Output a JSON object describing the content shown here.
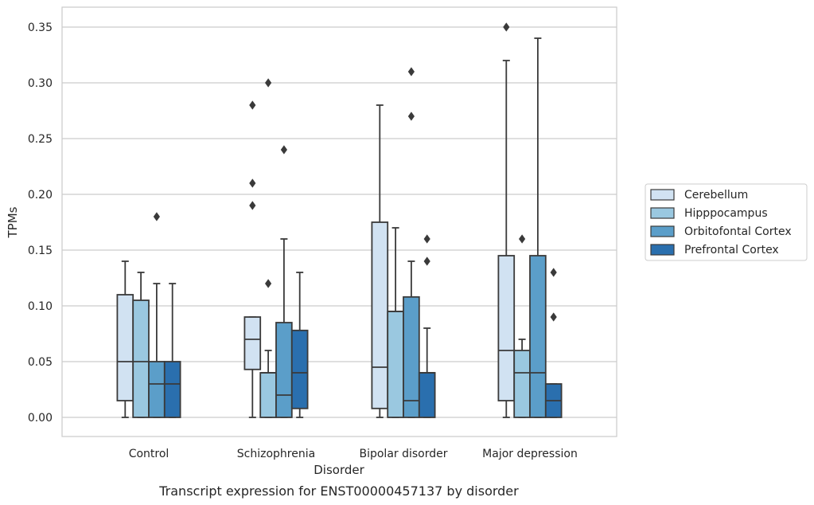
{
  "chart_data": {
    "type": "box",
    "xlabel": "Disorder",
    "ylabel": "TPMs",
    "caption": "Transcript expression for ENST00000457137 by disorder",
    "ylim": [
      -0.017,
      0.368
    ],
    "yticks": [
      "0.00",
      "0.05",
      "0.10",
      "0.15",
      "0.20",
      "0.25",
      "0.30",
      "0.35"
    ],
    "grid": true,
    "legend_position": "right",
    "categories": [
      "Control",
      "Schizophrenia",
      "Bipolar disorder",
      "Major depression"
    ],
    "series": [
      {
        "name": "Cerebellum",
        "color": "#d1e2f2",
        "boxes": [
          {
            "q1": 0.015,
            "median": 0.05,
            "q3": 0.11,
            "whisker_low": 0.0,
            "whisker_high": 0.14,
            "outliers": []
          },
          {
            "q1": 0.043,
            "median": 0.07,
            "q3": 0.09,
            "whisker_low": 0.0,
            "whisker_high": 0.09,
            "outliers": [
              0.19,
              0.21,
              0.28
            ]
          },
          {
            "q1": 0.008,
            "median": 0.045,
            "q3": 0.175,
            "whisker_low": 0.0,
            "whisker_high": 0.28,
            "outliers": []
          },
          {
            "q1": 0.015,
            "median": 0.06,
            "q3": 0.145,
            "whisker_low": 0.0,
            "whisker_high": 0.32,
            "outliers": [
              0.35
            ]
          }
        ]
      },
      {
        "name": "Hipppocampus",
        "color": "#9ac8e0",
        "boxes": [
          {
            "q1": 0.0,
            "median": 0.05,
            "q3": 0.105,
            "whisker_low": 0.0,
            "whisker_high": 0.13,
            "outliers": []
          },
          {
            "q1": 0.0,
            "median": 0.04,
            "q3": 0.04,
            "whisker_low": 0.0,
            "whisker_high": 0.06,
            "outliers": [
              0.12,
              0.3
            ]
          },
          {
            "q1": 0.0,
            "median": 0.095,
            "q3": 0.095,
            "whisker_low": 0.0,
            "whisker_high": 0.17,
            "outliers": []
          },
          {
            "q1": 0.0,
            "median": 0.04,
            "q3": 0.06,
            "whisker_low": 0.0,
            "whisker_high": 0.07,
            "outliers": [
              0.16
            ]
          }
        ]
      },
      {
        "name": "Orbitofontal Cortex",
        "color": "#5b9ec9",
        "boxes": [
          {
            "q1": 0.0,
            "median": 0.03,
            "q3": 0.05,
            "whisker_low": 0.0,
            "whisker_high": 0.12,
            "outliers": [
              0.18
            ]
          },
          {
            "q1": 0.0,
            "median": 0.02,
            "q3": 0.085,
            "whisker_low": 0.0,
            "whisker_high": 0.16,
            "outliers": [
              0.24
            ]
          },
          {
            "q1": 0.0,
            "median": 0.015,
            "q3": 0.108,
            "whisker_low": 0.0,
            "whisker_high": 0.14,
            "outliers": [
              0.27,
              0.31
            ]
          },
          {
            "q1": 0.0,
            "median": 0.04,
            "q3": 0.145,
            "whisker_low": 0.0,
            "whisker_high": 0.34,
            "outliers": []
          }
        ]
      },
      {
        "name": "Prefrontal Cortex",
        "color": "#2a6fae",
        "boxes": [
          {
            "q1": 0.0,
            "median": 0.03,
            "q3": 0.05,
            "whisker_low": 0.0,
            "whisker_high": 0.12,
            "outliers": []
          },
          {
            "q1": 0.008,
            "median": 0.04,
            "q3": 0.078,
            "whisker_low": 0.0,
            "whisker_high": 0.13,
            "outliers": []
          },
          {
            "q1": 0.0,
            "median": 0.04,
            "q3": 0.04,
            "whisker_low": 0.0,
            "whisker_high": 0.08,
            "outliers": [
              0.14,
              0.16
            ]
          },
          {
            "q1": 0.0,
            "median": 0.015,
            "q3": 0.03,
            "whisker_low": 0.0,
            "whisker_high": 0.03,
            "outliers": [
              0.09,
              0.13
            ]
          }
        ]
      }
    ]
  }
}
